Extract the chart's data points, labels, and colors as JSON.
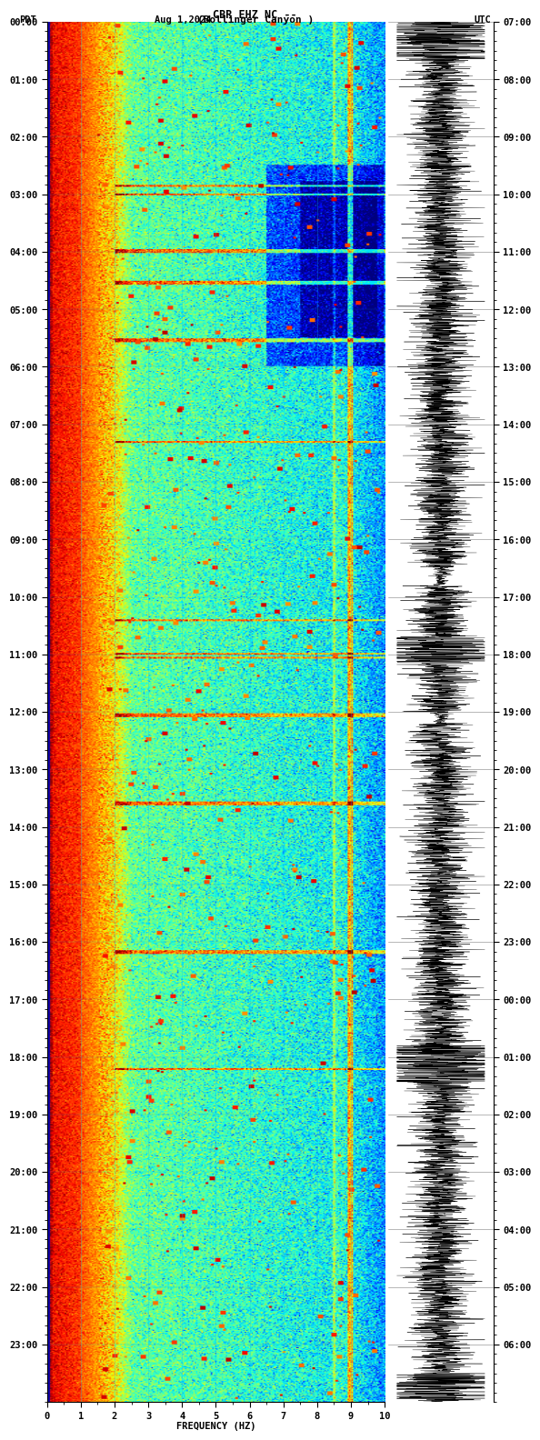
{
  "title_line1": "CBR EHZ NC --",
  "title_line2": "(Bollinger Canyon )",
  "left_label": "PDT",
  "date_label": "Aug 1,2024",
  "right_label": "UTC",
  "xlabel": "FREQUENCY (HZ)",
  "freq_min": 0,
  "freq_max": 10,
  "pdt_times": [
    "00:00",
    "01:00",
    "02:00",
    "03:00",
    "04:00",
    "05:00",
    "06:00",
    "07:00",
    "08:00",
    "09:00",
    "10:00",
    "11:00",
    "12:00",
    "13:00",
    "14:00",
    "15:00",
    "16:00",
    "17:00",
    "18:00",
    "19:00",
    "20:00",
    "21:00",
    "22:00",
    "23:00"
  ],
  "utc_times": [
    "07:00",
    "08:00",
    "09:00",
    "10:00",
    "11:00",
    "12:00",
    "13:00",
    "14:00",
    "15:00",
    "16:00",
    "17:00",
    "18:00",
    "19:00",
    "20:00",
    "21:00",
    "22:00",
    "23:00",
    "00:00",
    "01:00",
    "02:00",
    "03:00",
    "04:00",
    "05:00",
    "06:00"
  ],
  "font_family": "monospace",
  "font_size": 7.5,
  "title_font_size": 8.5
}
